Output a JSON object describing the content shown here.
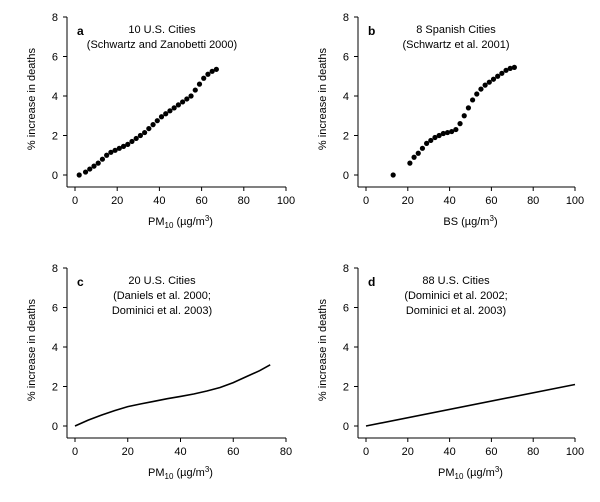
{
  "chart_data": [
    {
      "type": "scatter",
      "panel_label": "a",
      "annotation": [
        "10 U.S. Cities",
        "(Schwartz and Zanobetti 2000)"
      ],
      "xlabel": "PM10 (µg/m3)",
      "xlabel_base": "PM",
      "xlabel_sub": "10",
      "xlabel_unit": " (µg/m",
      "xlabel_sup": "3",
      "xlabel_close": ")",
      "ylabel": "% increase in deaths",
      "xlim": [
        0,
        100
      ],
      "ylim": [
        0,
        8
      ],
      "xticks": [
        "0",
        "20",
        "40",
        "60",
        "80",
        "100"
      ],
      "yticks": [
        "0",
        "2",
        "4",
        "6",
        "8"
      ],
      "grid": false,
      "series": [
        {
          "x": [
            2,
            5,
            7,
            9,
            11,
            13,
            15,
            17,
            19,
            21,
            23,
            25,
            27,
            29,
            31,
            33,
            35,
            37,
            39,
            41,
            43,
            45,
            47,
            49,
            51,
            53,
            55,
            57,
            59,
            61,
            63,
            65,
            67
          ],
          "y": [
            0.0,
            0.15,
            0.3,
            0.45,
            0.6,
            0.8,
            1.0,
            1.15,
            1.25,
            1.35,
            1.45,
            1.55,
            1.7,
            1.85,
            2.0,
            2.15,
            2.35,
            2.55,
            2.75,
            2.95,
            3.1,
            3.25,
            3.4,
            3.55,
            3.7,
            3.85,
            4.0,
            4.3,
            4.6,
            4.9,
            5.1,
            5.25,
            5.35
          ]
        }
      ]
    },
    {
      "type": "scatter",
      "panel_label": "b",
      "annotation": [
        "8 Spanish Cities",
        "(Schwartz et al. 2001)"
      ],
      "xlabel": "BS (µg/m3)",
      "xlabel_base": "BS",
      "xlabel_sub": "",
      "xlabel_unit": " (µg/m",
      "xlabel_sup": "3",
      "xlabel_close": ")",
      "ylabel": "% increase in deaths",
      "xlim": [
        0,
        100
      ],
      "ylim": [
        0,
        8
      ],
      "xticks": [
        "0",
        "20",
        "40",
        "60",
        "80",
        "100"
      ],
      "yticks": [
        "0",
        "2",
        "4",
        "6",
        "8"
      ],
      "grid": false,
      "series": [
        {
          "x": [
            13,
            21,
            23,
            25,
            27,
            29,
            31,
            33,
            35,
            37,
            39,
            41,
            43,
            45,
            47,
            49,
            51,
            53,
            55,
            57,
            59,
            61,
            63,
            65,
            67,
            69,
            71
          ],
          "y": [
            0.0,
            0.6,
            0.9,
            1.1,
            1.35,
            1.6,
            1.75,
            1.9,
            2.0,
            2.1,
            2.15,
            2.2,
            2.3,
            2.6,
            3.0,
            3.4,
            3.8,
            4.1,
            4.35,
            4.55,
            4.7,
            4.85,
            5.0,
            5.15,
            5.3,
            5.4,
            5.45
          ]
        }
      ]
    },
    {
      "type": "line",
      "panel_label": "c",
      "annotation": [
        "20 U.S. Cities",
        "(Daniels et al. 2000;",
        "Dominici et al. 2003)"
      ],
      "xlabel": "PM10 (µg/m3)",
      "xlabel_base": "PM",
      "xlabel_sub": "10",
      "xlabel_unit": " (µg/m",
      "xlabel_sup": "3",
      "xlabel_close": ")",
      "ylabel": "% increase in deaths",
      "xlim": [
        0,
        80
      ],
      "ylim": [
        0,
        8
      ],
      "xticks": [
        "0",
        "20",
        "40",
        "60",
        "80"
      ],
      "yticks": [
        "0",
        "2",
        "4",
        "6",
        "8"
      ],
      "grid": false,
      "series": [
        {
          "x": [
            0,
            5,
            10,
            15,
            20,
            25,
            30,
            35,
            40,
            45,
            50,
            55,
            60,
            65,
            70,
            74
          ],
          "y": [
            0.0,
            0.3,
            0.55,
            0.78,
            0.98,
            1.12,
            1.25,
            1.38,
            1.5,
            1.62,
            1.77,
            1.95,
            2.2,
            2.5,
            2.8,
            3.1
          ]
        }
      ]
    },
    {
      "type": "line",
      "panel_label": "d",
      "annotation": [
        "88 U.S. Cities",
        "(Dominici et al. 2002;",
        "Dominici et al. 2003)"
      ],
      "xlabel": "PM10 (µg/m3)",
      "xlabel_base": "PM",
      "xlabel_sub": "10",
      "xlabel_unit": " (µg/m",
      "xlabel_sup": "3",
      "xlabel_close": ")",
      "ylabel": "% increase in deaths",
      "xlim": [
        0,
        100
      ],
      "ylim": [
        0,
        8
      ],
      "xticks": [
        "0",
        "20",
        "40",
        "60",
        "80",
        "100"
      ],
      "yticks": [
        "0",
        "2",
        "4",
        "6",
        "8"
      ],
      "grid": false,
      "series": [
        {
          "x": [
            0,
            100
          ],
          "y": [
            0.0,
            2.1
          ]
        }
      ]
    }
  ]
}
